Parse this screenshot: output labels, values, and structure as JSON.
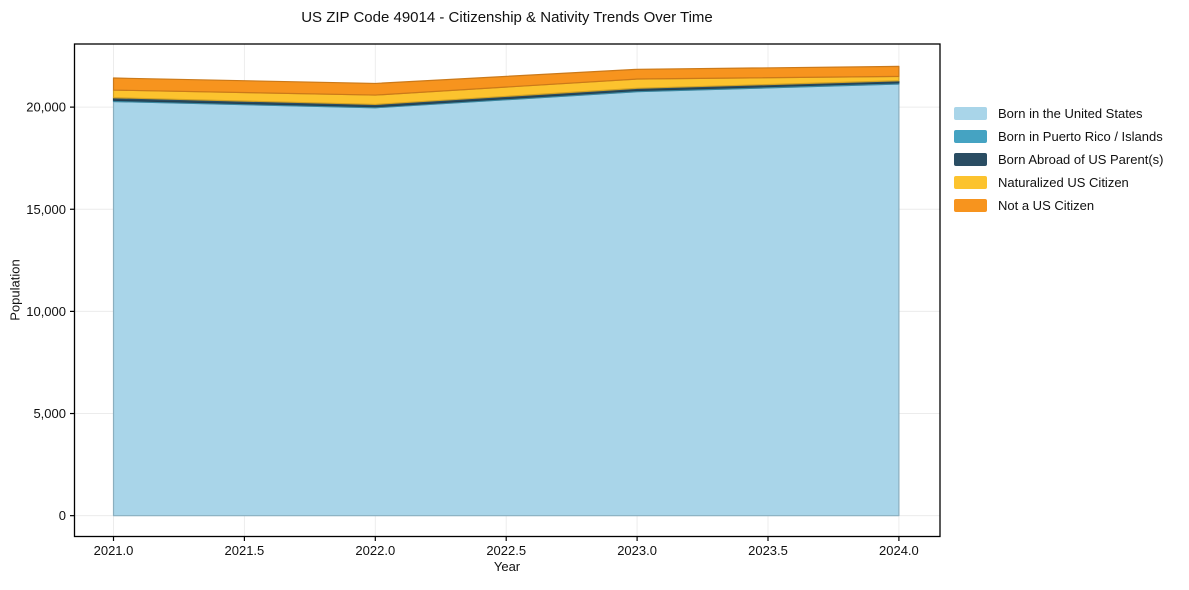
{
  "chart_data": {
    "type": "area",
    "stacked": true,
    "title": "US ZIP Code 49014 - Citizenship & Nativity Trends Over Time",
    "xlabel": "Year",
    "ylabel": "Population",
    "x": [
      2021,
      2022,
      2023,
      2024
    ],
    "series": [
      {
        "name": "Born in the United States",
        "color": "#A9D5E9",
        "values": [
          20275,
          19970,
          20755,
          21130
        ]
      },
      {
        "name": "Born in Puerto Rico / Islands",
        "color": "#45A3C2",
        "values": [
          60,
          50,
          60,
          60
        ]
      },
      {
        "name": "Born Abroad of US Parent(s)",
        "color": "#2A4D63",
        "values": [
          125,
          112,
          105,
          100
        ]
      },
      {
        "name": "Naturalized US Citizen",
        "color": "#FCC32E",
        "values": [
          375,
          458,
          455,
          215
        ]
      },
      {
        "name": "Not a US Citizen",
        "color": "#F7941E",
        "values": [
          590,
          570,
          475,
          490
        ]
      }
    ],
    "totals": [
      21425,
      21160,
      21850,
      21995
    ],
    "x_ticks": [
      2021.0,
      2021.5,
      2022.0,
      2022.5,
      2023.0,
      2023.5,
      2024.0
    ],
    "x_tick_labels": [
      "2021.0",
      "2021.5",
      "2022.0",
      "2022.5",
      "2023.0",
      "2023.5",
      "2024.0"
    ],
    "y_ticks": [
      0,
      5000,
      10000,
      15000,
      20000
    ],
    "y_tick_labels": [
      "0",
      "5,000",
      "10,000",
      "15,000",
      "20,000"
    ],
    "xlim": [
      2020.851,
      2024.157
    ],
    "ylim": [
      -1020,
      23090
    ],
    "grid": true,
    "grid_color": "#ececec",
    "spine_color": "#000000",
    "tick_label_color": "#111111",
    "legend_position": "right"
  }
}
